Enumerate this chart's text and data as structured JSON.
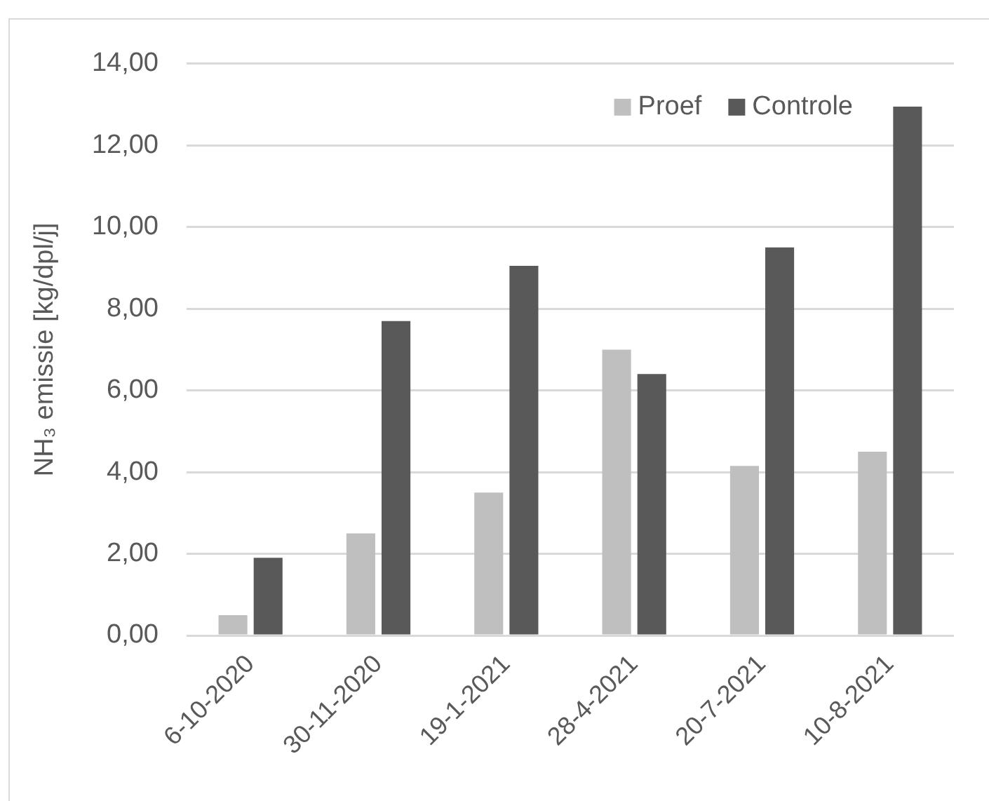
{
  "chart_data": {
    "type": "bar",
    "ylabel": "NH₃ emissie [kg/dpl/j]",
    "categories": [
      "6-10-2020",
      "30-11-2020",
      "19-1-2021",
      "28-4-2021",
      "20-7-2021",
      "10-8-2021"
    ],
    "series": [
      {
        "name": "Proef",
        "color": "#bfbfbf",
        "values": [
          0.5,
          2.5,
          3.5,
          7.0,
          4.15,
          4.5
        ]
      },
      {
        "name": "Controle",
        "color": "#595959",
        "values": [
          1.9,
          7.7,
          9.05,
          6.4,
          9.5,
          12.95
        ]
      }
    ],
    "ylim": [
      0,
      14
    ],
    "yticks": [
      {
        "value": 0,
        "label": "0,00"
      },
      {
        "value": 2,
        "label": "2,00"
      },
      {
        "value": 4,
        "label": "4,00"
      },
      {
        "value": 6,
        "label": "6,00"
      },
      {
        "value": 8,
        "label": "8,00"
      },
      {
        "value": 10,
        "label": "10,00"
      },
      {
        "value": 12,
        "label": "12,00"
      },
      {
        "value": 14,
        "label": "14,00"
      }
    ],
    "grid": "y",
    "legend": "top right"
  }
}
